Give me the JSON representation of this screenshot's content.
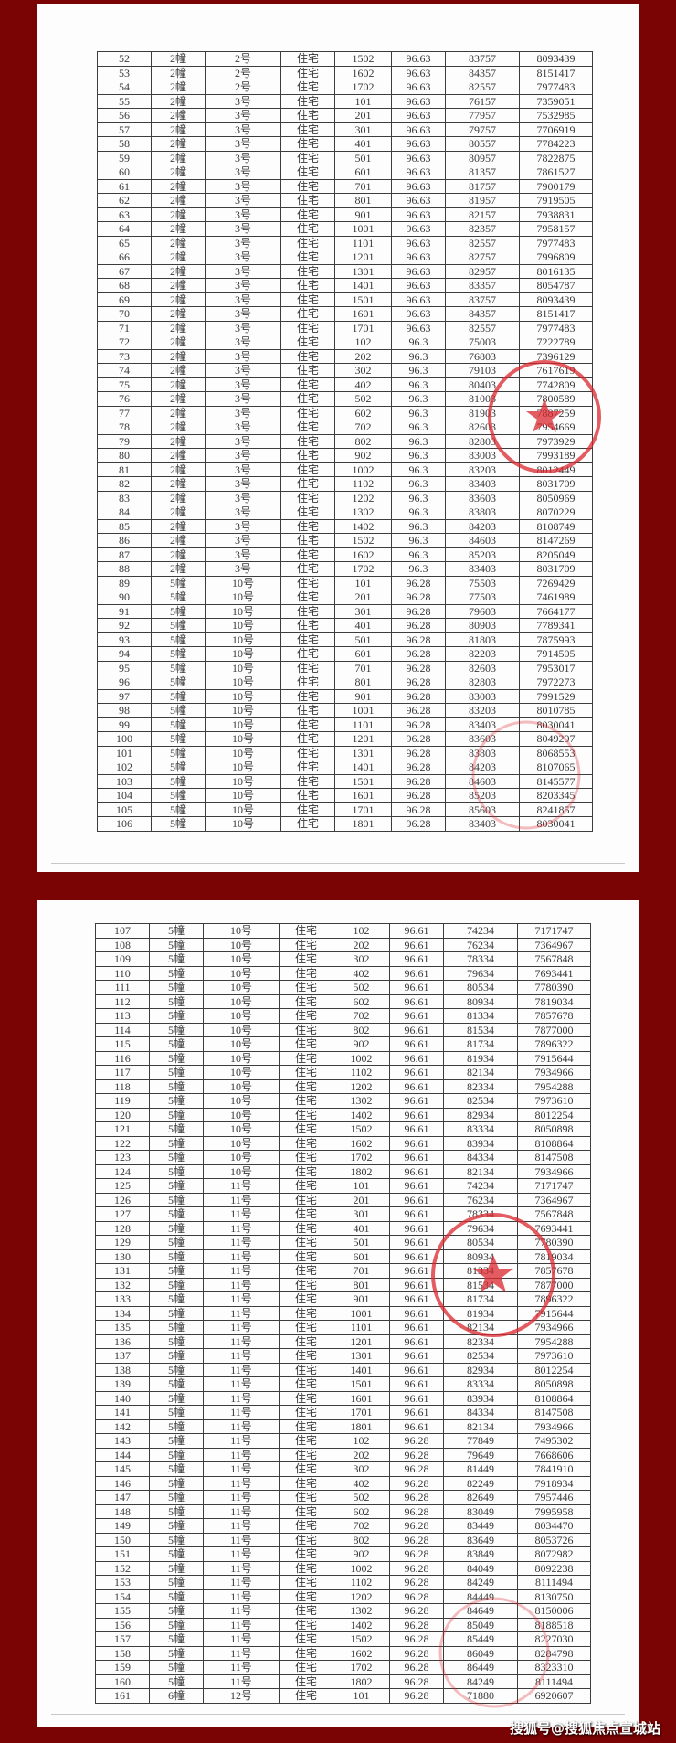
{
  "watermark": "搜狐号@搜狐焦点宣城站",
  "colors": {
    "background": "#7a0303",
    "stamp": "#d9272e"
  },
  "pages": [
    {
      "rows": [
        [
          "52",
          "2幢",
          "2号",
          "住宅",
          "1502",
          "96.63",
          "83757",
          "8093439"
        ],
        [
          "53",
          "2幢",
          "2号",
          "住宅",
          "1602",
          "96.63",
          "84357",
          "8151417"
        ],
        [
          "54",
          "2幢",
          "2号",
          "住宅",
          "1702",
          "96.63",
          "82557",
          "7977483"
        ],
        [
          "55",
          "2幢",
          "3号",
          "住宅",
          "101",
          "96.63",
          "76157",
          "7359051"
        ],
        [
          "56",
          "2幢",
          "3号",
          "住宅",
          "201",
          "96.63",
          "77957",
          "7532985"
        ],
        [
          "57",
          "2幢",
          "3号",
          "住宅",
          "301",
          "96.63",
          "79757",
          "7706919"
        ],
        [
          "58",
          "2幢",
          "3号",
          "住宅",
          "401",
          "96.63",
          "80557",
          "7784223"
        ],
        [
          "59",
          "2幢",
          "3号",
          "住宅",
          "501",
          "96.63",
          "80957",
          "7822875"
        ],
        [
          "60",
          "2幢",
          "3号",
          "住宅",
          "601",
          "96.63",
          "81357",
          "7861527"
        ],
        [
          "61",
          "2幢",
          "3号",
          "住宅",
          "701",
          "96.63",
          "81757",
          "7900179"
        ],
        [
          "62",
          "2幢",
          "3号",
          "住宅",
          "801",
          "96.63",
          "81957",
          "7919505"
        ],
        [
          "63",
          "2幢",
          "3号",
          "住宅",
          "901",
          "96.63",
          "82157",
          "7938831"
        ],
        [
          "64",
          "2幢",
          "3号",
          "住宅",
          "1001",
          "96.63",
          "82357",
          "7958157"
        ],
        [
          "65",
          "2幢",
          "3号",
          "住宅",
          "1101",
          "96.63",
          "82557",
          "7977483"
        ],
        [
          "66",
          "2幢",
          "3号",
          "住宅",
          "1201",
          "96.63",
          "82757",
          "7996809"
        ],
        [
          "67",
          "2幢",
          "3号",
          "住宅",
          "1301",
          "96.63",
          "82957",
          "8016135"
        ],
        [
          "68",
          "2幢",
          "3号",
          "住宅",
          "1401",
          "96.63",
          "83357",
          "8054787"
        ],
        [
          "69",
          "2幢",
          "3号",
          "住宅",
          "1501",
          "96.63",
          "83757",
          "8093439"
        ],
        [
          "70",
          "2幢",
          "3号",
          "住宅",
          "1601",
          "96.63",
          "84357",
          "8151417"
        ],
        [
          "71",
          "2幢",
          "3号",
          "住宅",
          "1701",
          "96.63",
          "82557",
          "7977483"
        ],
        [
          "72",
          "2幢",
          "3号",
          "住宅",
          "102",
          "96.3",
          "75003",
          "7222789"
        ],
        [
          "73",
          "2幢",
          "3号",
          "住宅",
          "202",
          "96.3",
          "76803",
          "7396129"
        ],
        [
          "74",
          "2幢",
          "3号",
          "住宅",
          "302",
          "96.3",
          "79103",
          "7617619"
        ],
        [
          "75",
          "2幢",
          "3号",
          "住宅",
          "402",
          "96.3",
          "80403",
          "7742809"
        ],
        [
          "76",
          "2幢",
          "3号",
          "住宅",
          "502",
          "96.3",
          "81003",
          "7800589"
        ],
        [
          "77",
          "2幢",
          "3号",
          "住宅",
          "602",
          "96.3",
          "81903",
          "7887259"
        ],
        [
          "78",
          "2幢",
          "3号",
          "住宅",
          "702",
          "96.3",
          "82603",
          "7954669"
        ],
        [
          "79",
          "2幢",
          "3号",
          "住宅",
          "802",
          "96.3",
          "82803",
          "7973929"
        ],
        [
          "80",
          "2幢",
          "3号",
          "住宅",
          "902",
          "96.3",
          "83003",
          "7993189"
        ],
        [
          "81",
          "2幢",
          "3号",
          "住宅",
          "1002",
          "96.3",
          "83203",
          "8012449"
        ],
        [
          "82",
          "2幢",
          "3号",
          "住宅",
          "1102",
          "96.3",
          "83403",
          "8031709"
        ],
        [
          "83",
          "2幢",
          "3号",
          "住宅",
          "1202",
          "96.3",
          "83603",
          "8050969"
        ],
        [
          "84",
          "2幢",
          "3号",
          "住宅",
          "1302",
          "96.3",
          "83803",
          "8070229"
        ],
        [
          "85",
          "2幢",
          "3号",
          "住宅",
          "1402",
          "96.3",
          "84203",
          "8108749"
        ],
        [
          "86",
          "2幢",
          "3号",
          "住宅",
          "1502",
          "96.3",
          "84603",
          "8147269"
        ],
        [
          "87",
          "2幢",
          "3号",
          "住宅",
          "1602",
          "96.3",
          "85203",
          "8205049"
        ],
        [
          "88",
          "2幢",
          "3号",
          "住宅",
          "1702",
          "96.3",
          "83403",
          "8031709"
        ],
        [
          "89",
          "5幢",
          "10号",
          "住宅",
          "101",
          "96.28",
          "75503",
          "7269429"
        ],
        [
          "90",
          "5幢",
          "10号",
          "住宅",
          "201",
          "96.28",
          "77503",
          "7461989"
        ],
        [
          "91",
          "5幢",
          "10号",
          "住宅",
          "301",
          "96.28",
          "79603",
          "7664177"
        ],
        [
          "92",
          "5幢",
          "10号",
          "住宅",
          "401",
          "96.28",
          "80903",
          "7789341"
        ],
        [
          "93",
          "5幢",
          "10号",
          "住宅",
          "501",
          "96.28",
          "81803",
          "7875993"
        ],
        [
          "94",
          "5幢",
          "10号",
          "住宅",
          "601",
          "96.28",
          "82203",
          "7914505"
        ],
        [
          "95",
          "5幢",
          "10号",
          "住宅",
          "701",
          "96.28",
          "82603",
          "7953017"
        ],
        [
          "96",
          "5幢",
          "10号",
          "住宅",
          "801",
          "96.28",
          "82803",
          "7972273"
        ],
        [
          "97",
          "5幢",
          "10号",
          "住宅",
          "901",
          "96.28",
          "83003",
          "7991529"
        ],
        [
          "98",
          "5幢",
          "10号",
          "住宅",
          "1001",
          "96.28",
          "83203",
          "8010785"
        ],
        [
          "99",
          "5幢",
          "10号",
          "住宅",
          "1101",
          "96.28",
          "83403",
          "8030041"
        ],
        [
          "100",
          "5幢",
          "10号",
          "住宅",
          "1201",
          "96.28",
          "83603",
          "8049297"
        ],
        [
          "101",
          "5幢",
          "10号",
          "住宅",
          "1301",
          "96.28",
          "83803",
          "8068553"
        ],
        [
          "102",
          "5幢",
          "10号",
          "住宅",
          "1401",
          "96.28",
          "84203",
          "8107065"
        ],
        [
          "103",
          "5幢",
          "10号",
          "住宅",
          "1501",
          "96.28",
          "84603",
          "8145577"
        ],
        [
          "104",
          "5幢",
          "10号",
          "住宅",
          "1601",
          "96.28",
          "85203",
          "8203345"
        ],
        [
          "105",
          "5幢",
          "10号",
          "住宅",
          "1701",
          "96.28",
          "85603",
          "8241857"
        ],
        [
          "106",
          "5幢",
          "10号",
          "住宅",
          "1801",
          "96.28",
          "83403",
          "8030041"
        ]
      ]
    },
    {
      "rows": [
        [
          "107",
          "5幢",
          "10号",
          "住宅",
          "102",
          "96.61",
          "74234",
          "7171747"
        ],
        [
          "108",
          "5幢",
          "10号",
          "住宅",
          "202",
          "96.61",
          "76234",
          "7364967"
        ],
        [
          "109",
          "5幢",
          "10号",
          "住宅",
          "302",
          "96.61",
          "78334",
          "7567848"
        ],
        [
          "110",
          "5幢",
          "10号",
          "住宅",
          "402",
          "96.61",
          "79634",
          "7693441"
        ],
        [
          "111",
          "5幢",
          "10号",
          "住宅",
          "502",
          "96.61",
          "80534",
          "7780390"
        ],
        [
          "112",
          "5幢",
          "10号",
          "住宅",
          "602",
          "96.61",
          "80934",
          "7819034"
        ],
        [
          "113",
          "5幢",
          "10号",
          "住宅",
          "702",
          "96.61",
          "81334",
          "7857678"
        ],
        [
          "114",
          "5幢",
          "10号",
          "住宅",
          "802",
          "96.61",
          "81534",
          "7877000"
        ],
        [
          "115",
          "5幢",
          "10号",
          "住宅",
          "902",
          "96.61",
          "81734",
          "7896322"
        ],
        [
          "116",
          "5幢",
          "10号",
          "住宅",
          "1002",
          "96.61",
          "81934",
          "7915644"
        ],
        [
          "117",
          "5幢",
          "10号",
          "住宅",
          "1102",
          "96.61",
          "82134",
          "7934966"
        ],
        [
          "118",
          "5幢",
          "10号",
          "住宅",
          "1202",
          "96.61",
          "82334",
          "7954288"
        ],
        [
          "119",
          "5幢",
          "10号",
          "住宅",
          "1302",
          "96.61",
          "82534",
          "7973610"
        ],
        [
          "120",
          "5幢",
          "10号",
          "住宅",
          "1402",
          "96.61",
          "82934",
          "8012254"
        ],
        [
          "121",
          "5幢",
          "10号",
          "住宅",
          "1502",
          "96.61",
          "83334",
          "8050898"
        ],
        [
          "122",
          "5幢",
          "10号",
          "住宅",
          "1602",
          "96.61",
          "83934",
          "8108864"
        ],
        [
          "123",
          "5幢",
          "10号",
          "住宅",
          "1702",
          "96.61",
          "84334",
          "8147508"
        ],
        [
          "124",
          "5幢",
          "10号",
          "住宅",
          "1802",
          "96.61",
          "82134",
          "7934966"
        ],
        [
          "125",
          "5幢",
          "11号",
          "住宅",
          "101",
          "96.61",
          "74234",
          "7171747"
        ],
        [
          "126",
          "5幢",
          "11号",
          "住宅",
          "201",
          "96.61",
          "76234",
          "7364967"
        ],
        [
          "127",
          "5幢",
          "11号",
          "住宅",
          "301",
          "96.61",
          "78334",
          "7567848"
        ],
        [
          "128",
          "5幢",
          "11号",
          "住宅",
          "401",
          "96.61",
          "79634",
          "7693441"
        ],
        [
          "129",
          "5幢",
          "11号",
          "住宅",
          "501",
          "96.61",
          "80534",
          "7780390"
        ],
        [
          "130",
          "5幢",
          "11号",
          "住宅",
          "601",
          "96.61",
          "80934",
          "7819034"
        ],
        [
          "131",
          "5幢",
          "11号",
          "住宅",
          "701",
          "96.61",
          "81334",
          "7857678"
        ],
        [
          "132",
          "5幢",
          "11号",
          "住宅",
          "801",
          "96.61",
          "81534",
          "7877000"
        ],
        [
          "133",
          "5幢",
          "11号",
          "住宅",
          "901",
          "96.61",
          "81734",
          "7896322"
        ],
        [
          "134",
          "5幢",
          "11号",
          "住宅",
          "1001",
          "96.61",
          "81934",
          "7915644"
        ],
        [
          "135",
          "5幢",
          "11号",
          "住宅",
          "1101",
          "96.61",
          "82134",
          "7934966"
        ],
        [
          "136",
          "5幢",
          "11号",
          "住宅",
          "1201",
          "96.61",
          "82334",
          "7954288"
        ],
        [
          "137",
          "5幢",
          "11号",
          "住宅",
          "1301",
          "96.61",
          "82534",
          "7973610"
        ],
        [
          "138",
          "5幢",
          "11号",
          "住宅",
          "1401",
          "96.61",
          "82934",
          "8012254"
        ],
        [
          "139",
          "5幢",
          "11号",
          "住宅",
          "1501",
          "96.61",
          "83334",
          "8050898"
        ],
        [
          "140",
          "5幢",
          "11号",
          "住宅",
          "1601",
          "96.61",
          "83934",
          "8108864"
        ],
        [
          "141",
          "5幢",
          "11号",
          "住宅",
          "1701",
          "96.61",
          "84334",
          "8147508"
        ],
        [
          "142",
          "5幢",
          "11号",
          "住宅",
          "1801",
          "96.61",
          "82134",
          "7934966"
        ],
        [
          "143",
          "5幢",
          "11号",
          "住宅",
          "102",
          "96.28",
          "77849",
          "7495302"
        ],
        [
          "144",
          "5幢",
          "11号",
          "住宅",
          "202",
          "96.28",
          "79649",
          "7668606"
        ],
        [
          "145",
          "5幢",
          "11号",
          "住宅",
          "302",
          "96.28",
          "81449",
          "7841910"
        ],
        [
          "146",
          "5幢",
          "11号",
          "住宅",
          "402",
          "96.28",
          "82249",
          "7918934"
        ],
        [
          "147",
          "5幢",
          "11号",
          "住宅",
          "502",
          "96.28",
          "82649",
          "7957446"
        ],
        [
          "148",
          "5幢",
          "11号",
          "住宅",
          "602",
          "96.28",
          "83049",
          "7995958"
        ],
        [
          "149",
          "5幢",
          "11号",
          "住宅",
          "702",
          "96.28",
          "83449",
          "8034470"
        ],
        [
          "150",
          "5幢",
          "11号",
          "住宅",
          "802",
          "96.28",
          "83649",
          "8053726"
        ],
        [
          "151",
          "5幢",
          "11号",
          "住宅",
          "902",
          "96.28",
          "83849",
          "8072982"
        ],
        [
          "152",
          "5幢",
          "11号",
          "住宅",
          "1002",
          "96.28",
          "84049",
          "8092238"
        ],
        [
          "153",
          "5幢",
          "11号",
          "住宅",
          "1102",
          "96.28",
          "84249",
          "8111494"
        ],
        [
          "154",
          "5幢",
          "11号",
          "住宅",
          "1202",
          "96.28",
          "84449",
          "8130750"
        ],
        [
          "155",
          "5幢",
          "11号",
          "住宅",
          "1302",
          "96.28",
          "84649",
          "8150006"
        ],
        [
          "156",
          "5幢",
          "11号",
          "住宅",
          "1402",
          "96.28",
          "85049",
          "8188518"
        ],
        [
          "157",
          "5幢",
          "11号",
          "住宅",
          "1502",
          "96.28",
          "85449",
          "8227030"
        ],
        [
          "158",
          "5幢",
          "11号",
          "住宅",
          "1602",
          "96.28",
          "86049",
          "8284798"
        ],
        [
          "159",
          "5幢",
          "11号",
          "住宅",
          "1702",
          "96.28",
          "86449",
          "8323310"
        ],
        [
          "160",
          "5幢",
          "11号",
          "住宅",
          "1802",
          "96.28",
          "84249",
          "8111494"
        ],
        [
          "161",
          "6幢",
          "12号",
          "住宅",
          "101",
          "96.28",
          "71880",
          "6920607"
        ]
      ]
    }
  ]
}
